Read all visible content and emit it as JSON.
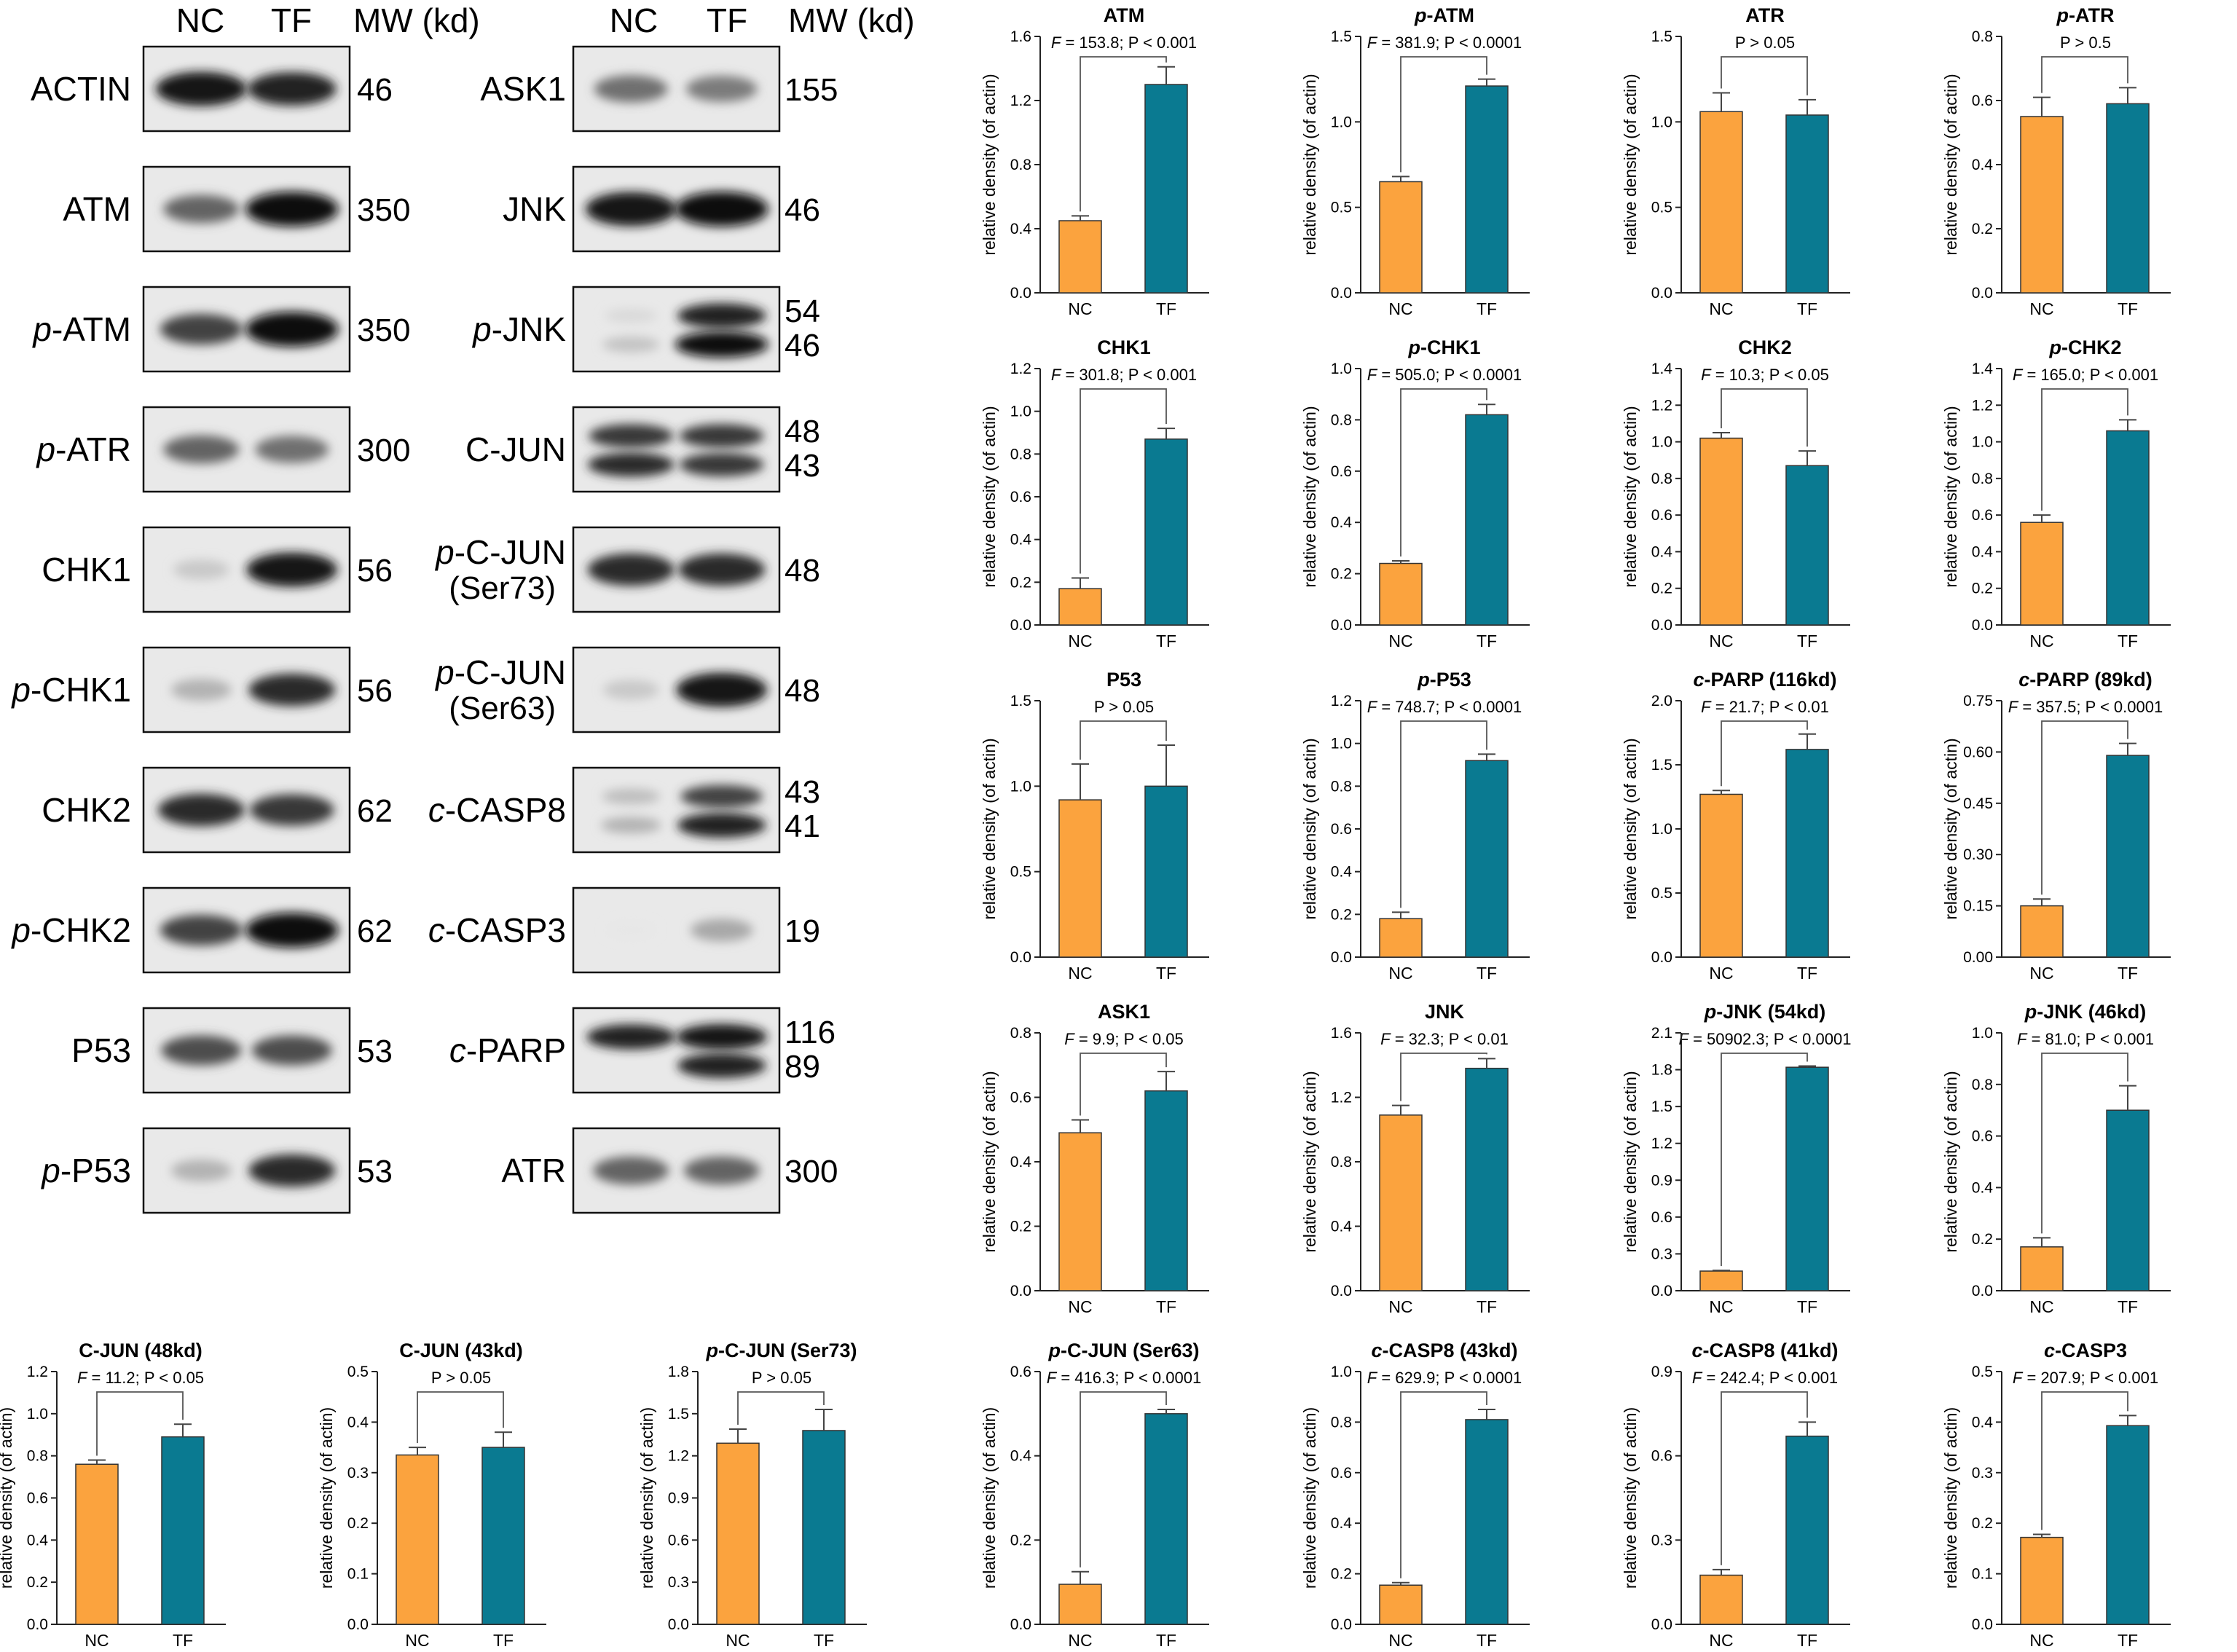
{
  "colors": {
    "nc": "#FBA33E",
    "tf": "#0A7A91",
    "axis": "#222222"
  },
  "blot_headers": [
    {
      "lane1": "NC",
      "lane2": "TF",
      "mw": "MW (kd)"
    },
    {
      "lane1": "NC",
      "lane2": "TF",
      "mw": "MW (kd)"
    }
  ],
  "blots": [
    {
      "prefix": "",
      "name": "ACTIN",
      "sub": "",
      "mw": [
        "46"
      ],
      "bands": [
        {
          "a": 0.95,
          "b": 0.9
        }
      ]
    },
    {
      "prefix": "",
      "name": "ATM",
      "sub": "",
      "mw": [
        "350"
      ],
      "bands": [
        {
          "a": 0.6,
          "b": 1.0
        }
      ]
    },
    {
      "prefix": "p-",
      "name": "ATM",
      "sub": "",
      "mw": [
        "350"
      ],
      "bands": [
        {
          "a": 0.75,
          "b": 1.0
        }
      ]
    },
    {
      "prefix": "p-",
      "name": "ATR",
      "sub": "",
      "mw": [
        "300"
      ],
      "bands": [
        {
          "a": 0.6,
          "b": 0.55
        }
      ]
    },
    {
      "prefix": "",
      "name": "CHK1",
      "sub": "",
      "mw": [
        "56"
      ],
      "bands": [
        {
          "a": 0.15,
          "b": 0.95
        }
      ]
    },
    {
      "prefix": "p-",
      "name": "CHK1",
      "sub": "",
      "mw": [
        "56"
      ],
      "bands": [
        {
          "a": 0.25,
          "b": 0.85
        }
      ]
    },
    {
      "prefix": "",
      "name": "CHK2",
      "sub": "",
      "mw": [
        "62"
      ],
      "bands": [
        {
          "a": 0.85,
          "b": 0.8
        }
      ]
    },
    {
      "prefix": "p-",
      "name": "CHK2",
      "sub": "",
      "mw": [
        "62"
      ],
      "bands": [
        {
          "a": 0.75,
          "b": 1.0
        }
      ]
    },
    {
      "prefix": "",
      "name": "P53",
      "sub": "",
      "mw": [
        "53"
      ],
      "bands": [
        {
          "a": 0.7,
          "b": 0.7
        }
      ]
    },
    {
      "prefix": "p-",
      "name": "P53",
      "sub": "",
      "mw": [
        "53"
      ],
      "bands": [
        {
          "a": 0.25,
          "b": 0.85
        }
      ]
    },
    {
      "prefix": "",
      "name": "ASK1",
      "sub": "",
      "mw": [
        "155"
      ],
      "bands": [
        {
          "a": 0.55,
          "b": 0.5
        }
      ]
    },
    {
      "prefix": "",
      "name": "JNK",
      "sub": "",
      "mw": [
        "46"
      ],
      "bands": [
        {
          "a": 0.95,
          "b": 1.0
        }
      ]
    },
    {
      "prefix": "p-",
      "name": "JNK",
      "sub": "",
      "mw": [
        "54",
        "46"
      ],
      "bands": [
        {
          "a": 0.08,
          "b": 0.9
        },
        {
          "a": 0.18,
          "b": 1.0
        }
      ]
    },
    {
      "prefix": "",
      "name": "C-JUN",
      "sub": "",
      "mw": [
        "48",
        "43"
      ],
      "bands": [
        {
          "a": 0.8,
          "b": 0.8
        },
        {
          "a": 0.85,
          "b": 0.8
        }
      ]
    },
    {
      "prefix": "p-",
      "name": "C-JUN",
      "sub": "(Ser73)",
      "mw": [
        "48"
      ],
      "bands": [
        {
          "a": 0.85,
          "b": 0.85
        }
      ]
    },
    {
      "prefix": "p-",
      "name": "C-JUN",
      "sub": "(Ser63)",
      "mw": [
        "48"
      ],
      "bands": [
        {
          "a": 0.15,
          "b": 0.95
        }
      ]
    },
    {
      "prefix": "c-",
      "name": "CASP8",
      "sub": "",
      "mw": [
        "43",
        "41"
      ],
      "bands": [
        {
          "a": 0.2,
          "b": 0.75
        },
        {
          "a": 0.25,
          "b": 0.9
        }
      ]
    },
    {
      "prefix": "c-",
      "name": "CASP3",
      "sub": "",
      "mw": [
        "19"
      ],
      "bands": [
        {
          "a": 0.02,
          "b": 0.3
        }
      ]
    },
    {
      "prefix": "c-",
      "name": "PARP",
      "sub": "",
      "mw": [
        "116",
        "89"
      ],
      "bands": [
        {
          "a": 0.9,
          "b": 0.95
        },
        {
          "a": 0.0,
          "b": 0.9
        }
      ]
    },
    {
      "prefix": "",
      "name": "ATR",
      "sub": "",
      "mw": [
        "300"
      ],
      "bands": [
        {
          "a": 0.6,
          "b": 0.6
        }
      ]
    }
  ],
  "chart_data": [
    {
      "type": "bar",
      "title": "ATM",
      "categories": [
        "NC",
        "TF"
      ],
      "values": [
        0.45,
        1.3
      ],
      "errors": [
        0.03,
        0.11
      ],
      "ylim": [
        0,
        1.6
      ],
      "yticks": [
        "0.0",
        "0.4",
        "0.8",
        "1.2",
        "1.6"
      ],
      "stat_italic": "F",
      "stat_text": " = 153.8; P < 0.001",
      "ylabel": "relative density (of actin)"
    },
    {
      "type": "bar",
      "title": "p-ATM",
      "categories": [
        "NC",
        "TF"
      ],
      "values": [
        0.65,
        1.21
      ],
      "errors": [
        0.03,
        0.04
      ],
      "ylim": [
        0,
        1.5
      ],
      "yticks": [
        "0.0",
        "0.5",
        "1.0",
        "1.5"
      ],
      "stat_italic": "F",
      "stat_text": " = 381.9; P < 0.0001",
      "ylabel": "relative density (of actin)"
    },
    {
      "type": "bar",
      "title": "ATR",
      "categories": [
        "NC",
        "TF"
      ],
      "values": [
        1.06,
        1.04
      ],
      "errors": [
        0.11,
        0.09
      ],
      "ylim": [
        0,
        1.5
      ],
      "yticks": [
        "0.0",
        "0.5",
        "1.0",
        "1.5"
      ],
      "stat_italic": "",
      "stat_text": "P > 0.05",
      "ylabel": "relative density (of actin)"
    },
    {
      "type": "bar",
      "title": "p-ATR",
      "categories": [
        "NC",
        "TF"
      ],
      "values": [
        0.55,
        0.59
      ],
      "errors": [
        0.06,
        0.05
      ],
      "ylim": [
        0,
        0.8
      ],
      "yticks": [
        "0.0",
        "0.2",
        "0.4",
        "0.6",
        "0.8"
      ],
      "stat_italic": "",
      "stat_text": "P > 0.5",
      "ylabel": "relative density (of actin)"
    },
    {
      "type": "bar",
      "title": "CHK1",
      "categories": [
        "NC",
        "TF"
      ],
      "values": [
        0.17,
        0.87
      ],
      "errors": [
        0.05,
        0.05
      ],
      "ylim": [
        0,
        1.2
      ],
      "yticks": [
        "0.0",
        "0.2",
        "0.4",
        "0.6",
        "0.8",
        "1.0",
        "1.2"
      ],
      "stat_italic": "F",
      "stat_text": " = 301.8; P < 0.001",
      "ylabel": "relative density (of actin)"
    },
    {
      "type": "bar",
      "title": "p-CHK1",
      "categories": [
        "NC",
        "TF"
      ],
      "values": [
        0.24,
        0.82
      ],
      "errors": [
        0.01,
        0.04
      ],
      "ylim": [
        0,
        1.0
      ],
      "yticks": [
        "0.0",
        "0.2",
        "0.4",
        "0.6",
        "0.8",
        "1.0"
      ],
      "stat_italic": "F",
      "stat_text": " = 505.0; P < 0.0001",
      "ylabel": "relative density (of actin)"
    },
    {
      "type": "bar",
      "title": "CHK2",
      "categories": [
        "NC",
        "TF"
      ],
      "values": [
        1.02,
        0.87
      ],
      "errors": [
        0.03,
        0.08
      ],
      "ylim": [
        0,
        1.4
      ],
      "yticks": [
        "0.0",
        "0.2",
        "0.4",
        "0.6",
        "0.8",
        "1.0",
        "1.2",
        "1.4"
      ],
      "stat_italic": "F",
      "stat_text": " = 10.3; P < 0.05",
      "ylabel": "relative density (of actin)"
    },
    {
      "type": "bar",
      "title": "p-CHK2",
      "categories": [
        "NC",
        "TF"
      ],
      "values": [
        0.56,
        1.06
      ],
      "errors": [
        0.04,
        0.06
      ],
      "ylim": [
        0,
        1.4
      ],
      "yticks": [
        "0.0",
        "0.2",
        "0.4",
        "0.6",
        "0.8",
        "1.0",
        "1.2",
        "1.4"
      ],
      "stat_italic": "F",
      "stat_text": " = 165.0; P < 0.001",
      "ylabel": "relative density (of actin)"
    },
    {
      "type": "bar",
      "title": "P53",
      "categories": [
        "NC",
        "TF"
      ],
      "values": [
        0.92,
        1.0
      ],
      "errors": [
        0.21,
        0.24
      ],
      "ylim": [
        0,
        1.5
      ],
      "yticks": [
        "0.0",
        "0.5",
        "1.0",
        "1.5"
      ],
      "stat_italic": "",
      "stat_text": "P > 0.05",
      "ylabel": "relative density (of actin)"
    },
    {
      "type": "bar",
      "title": "p-P53",
      "categories": [
        "NC",
        "TF"
      ],
      "values": [
        0.18,
        0.92
      ],
      "errors": [
        0.03,
        0.03
      ],
      "ylim": [
        0,
        1.2
      ],
      "yticks": [
        "0.0",
        "0.2",
        "0.4",
        "0.6",
        "0.8",
        "1.0",
        "1.2"
      ],
      "stat_italic": "F",
      "stat_text": " = 748.7; P < 0.0001",
      "ylabel": "relative density (of actin)"
    },
    {
      "type": "bar",
      "title": "c-PARP (116kd)",
      "categories": [
        "NC",
        "TF"
      ],
      "values": [
        1.27,
        1.62
      ],
      "errors": [
        0.03,
        0.12
      ],
      "ylim": [
        0,
        2.0
      ],
      "yticks": [
        "0.0",
        "0.5",
        "1.0",
        "1.5",
        "2.0"
      ],
      "stat_italic": "F",
      "stat_text": " = 21.7; P < 0.01",
      "ylabel": "relative density (of actin)"
    },
    {
      "type": "bar",
      "title": "c-PARP (89kd)",
      "categories": [
        "NC",
        "TF"
      ],
      "values": [
        0.15,
        0.59
      ],
      "errors": [
        0.02,
        0.035
      ],
      "ylim": [
        0,
        0.75
      ],
      "yticks": [
        "0.00",
        "0.15",
        "0.30",
        "0.45",
        "0.60",
        "0.75"
      ],
      "stat_italic": "F",
      "stat_text": " = 357.5; P < 0.0001",
      "ylabel": "relative density (of actin)"
    },
    {
      "type": "bar",
      "title": "ASK1",
      "categories": [
        "NC",
        "TF"
      ],
      "values": [
        0.49,
        0.62
      ],
      "errors": [
        0.04,
        0.06
      ],
      "ylim": [
        0,
        0.8
      ],
      "yticks": [
        "0.0",
        "0.2",
        "0.4",
        "0.6",
        "0.8"
      ],
      "stat_italic": "F",
      "stat_text": " = 9.9; P < 0.05",
      "ylabel": "relative density (of actin)"
    },
    {
      "type": "bar",
      "title": "JNK",
      "categories": [
        "NC",
        "TF"
      ],
      "values": [
        1.09,
        1.38
      ],
      "errors": [
        0.06,
        0.06
      ],
      "ylim": [
        0,
        1.6
      ],
      "yticks": [
        "0.0",
        "0.4",
        "0.8",
        "1.2",
        "1.6"
      ],
      "stat_italic": "F",
      "stat_text": " = 32.3; P < 0.01",
      "ylabel": "relative density (of actin)"
    },
    {
      "type": "bar",
      "title": "p-JNK (54kd)",
      "categories": [
        "NC",
        "TF"
      ],
      "values": [
        0.16,
        1.82
      ],
      "errors": [
        0.005,
        0.01
      ],
      "ylim": [
        0,
        2.1
      ],
      "yticks": [
        "0.0",
        "0.3",
        "0.6",
        "0.9",
        "1.2",
        "1.5",
        "1.8",
        "2.1"
      ],
      "stat_italic": "F",
      "stat_text": " = 50902.3; P < 0.0001",
      "ylabel": "relative density (of actin)"
    },
    {
      "type": "bar",
      "title": "p-JNK (46kd)",
      "categories": [
        "NC",
        "TF"
      ],
      "values": [
        0.17,
        0.7
      ],
      "errors": [
        0.035,
        0.095
      ],
      "ylim": [
        0,
        1.0
      ],
      "yticks": [
        "0.0",
        "0.2",
        "0.4",
        "0.6",
        "0.8",
        "1.0"
      ],
      "stat_italic": "F",
      "stat_text": " = 81.0; P < 0.001",
      "ylabel": "relative density (of actin)"
    },
    {
      "type": "bar",
      "title": "C-JUN (48kd)",
      "categories": [
        "NC",
        "TF"
      ],
      "values": [
        0.76,
        0.89
      ],
      "errors": [
        0.02,
        0.06
      ],
      "ylim": [
        0,
        1.2
      ],
      "yticks": [
        "0.0",
        "0.2",
        "0.4",
        "0.6",
        "0.8",
        "1.0",
        "1.2"
      ],
      "stat_italic": "F",
      "stat_text": " = 11.2; P < 0.05",
      "ylabel": "relative density (of actin)"
    },
    {
      "type": "bar",
      "title": "C-JUN (43kd)",
      "categories": [
        "NC",
        "TF"
      ],
      "values": [
        0.335,
        0.35
      ],
      "errors": [
        0.015,
        0.03
      ],
      "ylim": [
        0,
        0.5
      ],
      "yticks": [
        "0.0",
        "0.1",
        "0.2",
        "0.3",
        "0.4",
        "0.5"
      ],
      "stat_italic": "",
      "stat_text": "P > 0.05",
      "ylabel": "relative density (of actin)"
    },
    {
      "type": "bar",
      "title": "p-C-JUN (Ser73)",
      "categories": [
        "NC",
        "TF"
      ],
      "values": [
        1.29,
        1.38
      ],
      "errors": [
        0.1,
        0.15
      ],
      "ylim": [
        0,
        1.8
      ],
      "yticks": [
        "0.0",
        "0.3",
        "0.6",
        "0.9",
        "1.2",
        "1.5",
        "1.8"
      ],
      "stat_italic": "",
      "stat_text": "P > 0.05",
      "ylabel": "relative density (of actin)"
    },
    {
      "type": "bar",
      "title": "p-C-JUN (Ser63)",
      "categories": [
        "NC",
        "TF"
      ],
      "values": [
        0.095,
        0.5
      ],
      "errors": [
        0.03,
        0.01
      ],
      "ylim": [
        0,
        0.6
      ],
      "yticks": [
        "0.0",
        "0.2",
        "0.4",
        "0.6"
      ],
      "stat_italic": "F",
      "stat_text": " = 416.3; P < 0.0001",
      "ylabel": "relative density (of actin)"
    },
    {
      "type": "bar",
      "title": "c-CASP8 (43kd)",
      "categories": [
        "NC",
        "TF"
      ],
      "values": [
        0.155,
        0.81
      ],
      "errors": [
        0.01,
        0.04
      ],
      "ylim": [
        0,
        1.0
      ],
      "yticks": [
        "0.0",
        "0.2",
        "0.4",
        "0.6",
        "0.8",
        "1.0"
      ],
      "stat_italic": "F",
      "stat_text": " = 629.9; P < 0.0001",
      "ylabel": "relative density (of actin)"
    },
    {
      "type": "bar",
      "title": "c-CASP8 (41kd)",
      "categories": [
        "NC",
        "TF"
      ],
      "values": [
        0.175,
        0.67
      ],
      "errors": [
        0.02,
        0.05
      ],
      "ylim": [
        0,
        0.9
      ],
      "yticks": [
        "0.0",
        "0.3",
        "0.6",
        "0.9"
      ],
      "stat_italic": "F",
      "stat_text": " = 242.4; P < 0.001",
      "ylabel": "relative density (of actin)"
    },
    {
      "type": "bar",
      "title": "c-CASP3",
      "categories": [
        "NC",
        "TF"
      ],
      "values": [
        0.172,
        0.393
      ],
      "errors": [
        0.006,
        0.02
      ],
      "ylim": [
        0,
        0.5
      ],
      "yticks": [
        "0.0",
        "0.1",
        "0.2",
        "0.3",
        "0.4",
        "0.5"
      ],
      "stat_italic": "F",
      "stat_text": " = 207.9; P < 0.001",
      "ylabel": "relative density (of actin)"
    }
  ]
}
